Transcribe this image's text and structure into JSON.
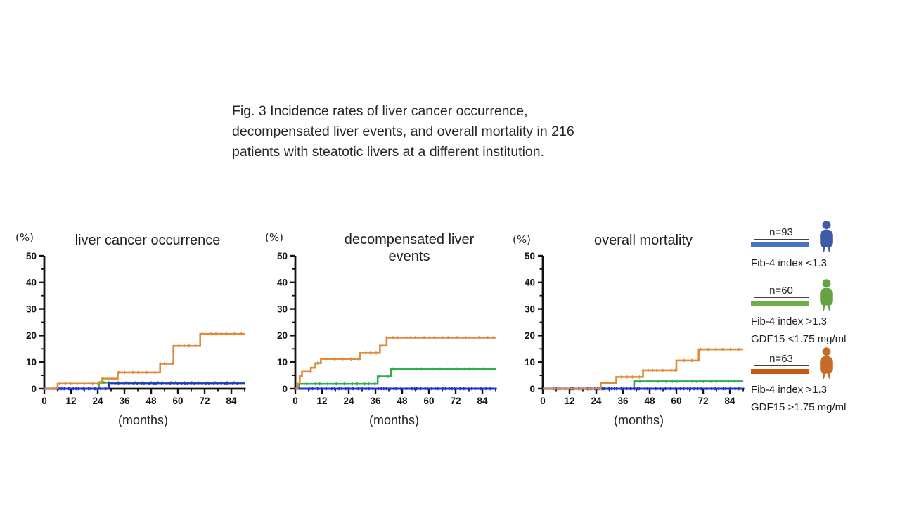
{
  "caption": {
    "line1": "Fig. 3 Incidence rates of liver cancer occurrence,",
    "line2": "decompensated liver events, and overall mortality in 216",
    "line3": "patients with steatotic livers at a different institution."
  },
  "chart_data": [
    {
      "type": "line",
      "subtype": "kaplan-meier-step",
      "title": "liver cancer occurrence",
      "ylabel": "(%)",
      "xlabel": "(months)",
      "xlim": [
        0,
        90
      ],
      "ylim": [
        0,
        50
      ],
      "xticks": [
        0,
        12,
        24,
        36,
        48,
        60,
        72,
        84
      ],
      "yticks": [
        0,
        10,
        20,
        30,
        40,
        50
      ],
      "grid": false,
      "legend_position": "none",
      "series": [
        {
          "name": "Fib-4 index <1.3",
          "n": "n=93",
          "color": "#2433C8",
          "censor_density": "high",
          "points": [
            [
              0,
              0
            ],
            [
              29,
              1.9
            ],
            [
              90,
              1.9
            ]
          ]
        },
        {
          "name": "Fib-4 index >1.3, GDF15 <1.75 mg/ml",
          "n": "n=60",
          "color": "#2FAE4E",
          "censor_density": "medium",
          "points": [
            [
              0,
              0
            ],
            [
              24.5,
              2.3
            ],
            [
              90,
              2.3
            ]
          ]
        },
        {
          "name": "Fib-4 index >1.3, GDF15 >1.75 mg/ml",
          "n": "n=63",
          "color": "#E08A3C",
          "censor_density": "medium",
          "points": [
            [
              0,
              0
            ],
            [
              6,
              1.9
            ],
            [
              26,
              3.8
            ],
            [
              33,
              6.1
            ],
            [
              52,
              9.4
            ],
            [
              58,
              16.1
            ],
            [
              70,
              20.6
            ],
            [
              90,
              20.6
            ]
          ]
        }
      ]
    },
    {
      "type": "line",
      "subtype": "kaplan-meier-step",
      "title": "decompensated liver events",
      "ylabel": "(%)",
      "xlabel": "(months)",
      "xlim": [
        0,
        90
      ],
      "ylim": [
        0,
        50
      ],
      "xticks": [
        0,
        12,
        24,
        36,
        48,
        60,
        72,
        84
      ],
      "yticks": [
        0,
        10,
        20,
        30,
        40,
        50
      ],
      "grid": false,
      "legend_position": "none",
      "series": [
        {
          "name": "Fib-4 index <1.3",
          "n": "n=93",
          "color": "#2433C8",
          "censor_density": "high",
          "points": [
            [
              0,
              0
            ],
            [
              90,
              0
            ]
          ]
        },
        {
          "name": "Fib-4 index >1.3, GDF15 <1.75 mg/ml",
          "n": "n=60",
          "color": "#2FAE4E",
          "censor_density": "medium",
          "points": [
            [
              0,
              0
            ],
            [
              1.5,
              1.8
            ],
            [
              37,
              4.6
            ],
            [
              43,
              7.4
            ],
            [
              90,
              7.4
            ]
          ]
        },
        {
          "name": "Fib-4 index >1.3, GDF15 >1.75 mg/ml",
          "n": "n=63",
          "color": "#E08A3C",
          "censor_density": "medium",
          "points": [
            [
              0,
              0
            ],
            [
              1,
              1.9
            ],
            [
              2,
              4.8
            ],
            [
              3,
              6.4
            ],
            [
              7,
              7.9
            ],
            [
              9,
              9.6
            ],
            [
              11.5,
              11.2
            ],
            [
              29,
              13.4
            ],
            [
              38,
              16.2
            ],
            [
              41,
              19.2
            ],
            [
              90,
              19.2
            ]
          ]
        }
      ]
    },
    {
      "type": "line",
      "subtype": "kaplan-meier-step",
      "title": "overall mortality",
      "ylabel": "(%)",
      "xlabel": "(months)",
      "xlim": [
        0,
        90
      ],
      "ylim": [
        0,
        50
      ],
      "xticks": [
        0,
        12,
        24,
        36,
        48,
        60,
        72,
        84
      ],
      "yticks": [
        0,
        10,
        20,
        30,
        40,
        50
      ],
      "grid": false,
      "legend_position": "none",
      "series": [
        {
          "name": "Fib-4 index <1.3",
          "n": "n=93",
          "color": "#2433C8",
          "censor_density": "high",
          "points": [
            [
              0,
              0
            ],
            [
              90,
              0
            ]
          ]
        },
        {
          "name": "Fib-4 index >1.3, GDF15 <1.75 mg/ml",
          "n": "n=60",
          "color": "#2FAE4E",
          "censor_density": "medium",
          "points": [
            [
              0,
              0
            ],
            [
              41,
              2.8
            ],
            [
              90,
              2.8
            ]
          ]
        },
        {
          "name": "Fib-4 index >1.3, GDF15 >1.75 mg/ml",
          "n": "n=63",
          "color": "#E08A3C",
          "censor_density": "medium",
          "points": [
            [
              0,
              0
            ],
            [
              26,
              2.2
            ],
            [
              33,
              4.4
            ],
            [
              45,
              6.9
            ],
            [
              60,
              10.6
            ],
            [
              70,
              14.8
            ],
            [
              90,
              14.8
            ]
          ]
        }
      ]
    }
  ],
  "legend": {
    "items": [
      {
        "n_label": "n=93",
        "bar_color": "#4472C4",
        "icon": "person-icon",
        "icon_color": "#3D5BA9",
        "desc_line1": "Fib-4 index <1.3",
        "desc_line2": ""
      },
      {
        "n_label": "n=60",
        "bar_color": "#70AD47",
        "icon": "person-icon",
        "icon_color": "#66A344",
        "desc_line1": "Fib-4 index >1.3",
        "desc_line2": "GDF15 <1.75 mg/ml"
      },
      {
        "n_label": "n=63",
        "bar_color": "#C55A11",
        "icon": "person-icon",
        "icon_color": "#C76B2B",
        "desc_line1": "Fib-4 index >1.3",
        "desc_line2": "GDF15 >1.75 mg/ml"
      }
    ]
  }
}
